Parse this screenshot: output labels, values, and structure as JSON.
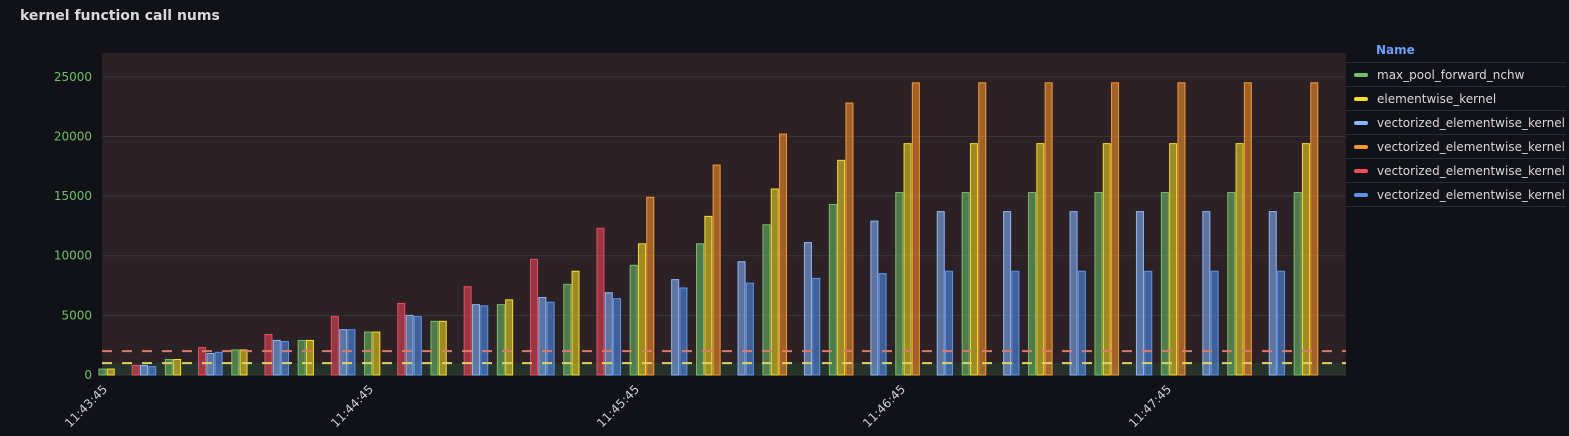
{
  "panel": {
    "title": "kernel function call nums"
  },
  "legend": {
    "header": "Name",
    "items": [
      {
        "label": "max_pool_forward_nchw",
        "color": "#73bf69"
      },
      {
        "label": "elementwise_kernel",
        "color": "#fade2a"
      },
      {
        "label": "vectorized_elementwise_kernel",
        "color": "#8ab8ff"
      },
      {
        "label": "vectorized_elementwise_kernel",
        "color": "#ff9830"
      },
      {
        "label": "vectorized_elementwise_kernel",
        "color": "#f2495c"
      },
      {
        "label": "vectorized_elementwise_kernel",
        "color": "#5794f2"
      }
    ]
  },
  "chart_data": {
    "type": "bar",
    "x_tick_labels": [
      "11:43:45",
      "11:44:45",
      "11:45:45",
      "11:46:45",
      "11:47:45"
    ],
    "ylim": [
      0,
      27000
    ],
    "y_ticks": [
      0,
      5000,
      10000,
      15000,
      20000,
      25000
    ],
    "thresholds": [
      {
        "value": 1000,
        "color": "#e0d06a"
      },
      {
        "value": 2000,
        "color": "#d97b6a"
      }
    ],
    "series": [
      {
        "name": "max_pool_forward_nchw",
        "color": "#73bf69",
        "values": [
          500,
          null,
          1300,
          null,
          2100,
          null,
          2900,
          null,
          3600,
          null,
          4500,
          null,
          5900,
          null,
          7600,
          null,
          9200,
          null,
          11000,
          null,
          12600,
          null,
          14300,
          null,
          15300,
          null,
          15300,
          null,
          15300,
          null,
          15300,
          null,
          15300,
          null,
          15300,
          null,
          15300
        ]
      },
      {
        "name": "elementwise_kernel",
        "color": "#fade2a",
        "values": [
          500,
          null,
          1300,
          null,
          2100,
          null,
          2900,
          null,
          3600,
          null,
          4500,
          null,
          6300,
          null,
          8700,
          null,
          11000,
          null,
          13300,
          null,
          15600,
          null,
          18000,
          null,
          19400,
          null,
          19400,
          null,
          19400,
          null,
          19400,
          null,
          19400,
          null,
          19400,
          null,
          19400
        ]
      },
      {
        "name": "vectorized_elementwise_kernel",
        "color": "#8ab8ff",
        "values": [
          null,
          800,
          null,
          1800,
          null,
          2900,
          null,
          3800,
          null,
          5000,
          null,
          5900,
          null,
          6500,
          null,
          6900,
          null,
          8000,
          null,
          9500,
          null,
          11100,
          null,
          12900,
          null,
          13700,
          null,
          13700,
          null,
          13700,
          null,
          13700,
          null,
          13700,
          null,
          13700,
          null
        ]
      },
      {
        "name": "vectorized_elementwise_kernel",
        "color": "#ff9830",
        "values": [
          null,
          null,
          null,
          null,
          null,
          null,
          null,
          null,
          null,
          null,
          null,
          null,
          null,
          null,
          null,
          null,
          14900,
          null,
          17600,
          null,
          20200,
          null,
          22800,
          null,
          24500,
          null,
          24500,
          null,
          24500,
          null,
          24500,
          null,
          24500,
          null,
          24500,
          null,
          24500
        ]
      },
      {
        "name": "vectorized_elementwise_kernel",
        "color": "#f2495c",
        "values": [
          null,
          800,
          null,
          2300,
          null,
          3400,
          null,
          4900,
          null,
          6000,
          null,
          7400,
          null,
          9700,
          null,
          12300,
          null,
          null,
          null,
          null,
          null,
          null,
          null,
          null,
          null,
          null,
          null,
          null,
          null,
          null,
          null,
          null,
          null,
          null,
          null,
          null,
          null
        ]
      },
      {
        "name": "vectorized_elementwise_kernel",
        "color": "#5794f2",
        "values": [
          null,
          700,
          null,
          1900,
          null,
          2800,
          null,
          3800,
          null,
          4900,
          null,
          5800,
          null,
          6100,
          null,
          6400,
          null,
          7300,
          null,
          7700,
          null,
          8100,
          null,
          8500,
          null,
          8700,
          null,
          8700,
          null,
          8700,
          null,
          8700,
          null,
          8700,
          null,
          8700,
          null
        ]
      }
    ]
  }
}
